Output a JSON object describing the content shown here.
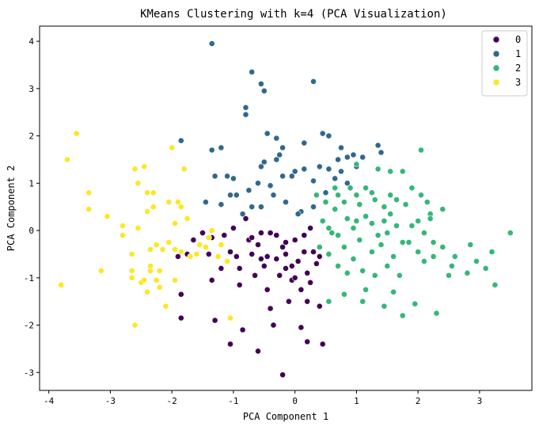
{
  "chart_data": {
    "type": "scatter",
    "title": "KMeans Clustering with k=4 (PCA Visualization)",
    "xlabel": "PCA Component 1",
    "ylabel": "PCA Component 2",
    "xlim": [
      -4.15,
      3.85
    ],
    "ylim": [
      -3.38,
      4.32
    ],
    "xticks": [
      -4,
      -3,
      -2,
      -1,
      0,
      1,
      2,
      3
    ],
    "yticks": [
      -3,
      -2,
      -1,
      0,
      1,
      2,
      3,
      4
    ],
    "grid": false,
    "legend_position": "top-right",
    "series": [
      {
        "name": "0",
        "color": "#440154",
        "points": [
          [
            -1.75,
            -0.5
          ],
          [
            -1.9,
            -0.55
          ],
          [
            -1.85,
            -1.35
          ],
          [
            -1.85,
            -1.85
          ],
          [
            -1.65,
            -0.2
          ],
          [
            -1.5,
            -0.05
          ],
          [
            -1.35,
            -0.15
          ],
          [
            -1.4,
            -0.5
          ],
          [
            -1.35,
            -1.05
          ],
          [
            -1.3,
            -1.9
          ],
          [
            -1.2,
            -0.8
          ],
          [
            -1.15,
            -0.1
          ],
          [
            -1.05,
            -0.45
          ],
          [
            -1.0,
            0.05
          ],
          [
            -0.95,
            -0.55
          ],
          [
            -0.9,
            -0.8
          ],
          [
            -0.9,
            -1.15
          ],
          [
            -0.85,
            -2.1
          ],
          [
            -1.05,
            -2.4
          ],
          [
            -0.8,
            0.25
          ],
          [
            -0.75,
            -0.2
          ],
          [
            -0.7,
            -0.5
          ],
          [
            -0.65,
            -0.95
          ],
          [
            -0.6,
            -0.3
          ],
          [
            -0.55,
            -0.05
          ],
          [
            -0.5,
            -0.75
          ],
          [
            -0.45,
            -0.55
          ],
          [
            -0.45,
            -1.25
          ],
          [
            -0.4,
            -1.65
          ],
          [
            -0.35,
            -2.0
          ],
          [
            -0.3,
            -0.1
          ],
          [
            -0.3,
            -0.6
          ],
          [
            -0.25,
            -0.95
          ],
          [
            -0.2,
            -0.35
          ],
          [
            -0.15,
            -0.5
          ],
          [
            -0.15,
            -0.25
          ],
          [
            -0.1,
            -1.5
          ],
          [
            -0.05,
            -0.75
          ],
          [
            -0.05,
            -1.05
          ],
          [
            0.0,
            -0.2
          ],
          [
            0.05,
            -0.65
          ],
          [
            0.1,
            -1.25
          ],
          [
            0.1,
            -2.05
          ],
          [
            0.15,
            -0.45
          ],
          [
            0.2,
            -0.9
          ],
          [
            0.2,
            -2.35
          ],
          [
            0.25,
            0.05
          ],
          [
            0.25,
            -1.1
          ],
          [
            0.3,
            -0.45
          ],
          [
            0.35,
            -0.7
          ],
          [
            0.4,
            -1.6
          ],
          [
            0.45,
            -2.4
          ],
          [
            -0.6,
            -2.55
          ],
          [
            -0.2,
            -3.05
          ],
          [
            -0.4,
            -0.05
          ],
          [
            -0.55,
            -0.6
          ],
          [
            0.0,
            -1.0
          ],
          [
            -0.15,
            -0.8
          ],
          [
            0.4,
            -0.55
          ],
          [
            0.15,
            -0.1
          ],
          [
            0.2,
            -1.5
          ],
          [
            -0.7,
            -0.15
          ]
        ]
      },
      {
        "name": "1",
        "color": "#31688e",
        "points": [
          [
            -1.35,
            3.95
          ],
          [
            -0.7,
            3.35
          ],
          [
            -0.55,
            3.1
          ],
          [
            -0.5,
            2.95
          ],
          [
            0.3,
            3.15
          ],
          [
            -0.8,
            2.6
          ],
          [
            -0.8,
            2.45
          ],
          [
            -1.85,
            1.9
          ],
          [
            -1.35,
            1.7
          ],
          [
            -1.2,
            1.75
          ],
          [
            -0.45,
            2.05
          ],
          [
            -0.3,
            1.95
          ],
          [
            -0.2,
            1.75
          ],
          [
            0.15,
            1.85
          ],
          [
            0.45,
            2.05
          ],
          [
            0.55,
            2.0
          ],
          [
            0.75,
            1.75
          ],
          [
            1.35,
            1.8
          ],
          [
            1.4,
            1.65
          ],
          [
            1.1,
            1.55
          ],
          [
            -1.3,
            1.15
          ],
          [
            -1.1,
            1.15
          ],
          [
            -1.05,
            0.75
          ],
          [
            -1.2,
            0.55
          ],
          [
            -1.45,
            0.6
          ],
          [
            -1.0,
            1.1
          ],
          [
            -0.95,
            0.75
          ],
          [
            -0.75,
            0.85
          ],
          [
            -0.7,
            0.5
          ],
          [
            -0.6,
            1.0
          ],
          [
            -0.55,
            1.35
          ],
          [
            -0.5,
            1.45
          ],
          [
            -0.4,
            0.95
          ],
          [
            -0.3,
            1.5
          ],
          [
            -0.25,
            1.6
          ],
          [
            -0.2,
            1.15
          ],
          [
            -0.05,
            1.15
          ],
          [
            0.15,
            1.3
          ],
          [
            0.3,
            1.05
          ],
          [
            0.4,
            1.35
          ],
          [
            0.55,
            1.3
          ],
          [
            0.65,
            1.1
          ],
          [
            0.7,
            1.5
          ],
          [
            0.75,
            1.25
          ],
          [
            0.85,
            1.55
          ],
          [
            0.95,
            1.6
          ],
          [
            1.0,
            1.35
          ],
          [
            0.85,
            1.0
          ],
          [
            0.5,
            0.8
          ],
          [
            0.3,
            0.5
          ],
          [
            0.1,
            0.4
          ],
          [
            0.05,
            0.35
          ],
          [
            -0.15,
            0.6
          ],
          [
            -0.35,
            0.75
          ],
          [
            -0.85,
            0.35
          ],
          [
            -0.55,
            0.5
          ],
          [
            0.0,
            1.25
          ]
        ]
      },
      {
        "name": "2",
        "color": "#35b779",
        "points": [
          [
            1.0,
            1.4
          ],
          [
            1.35,
            1.3
          ],
          [
            1.55,
            1.25
          ],
          [
            1.75,
            1.25
          ],
          [
            2.05,
            1.7
          ],
          [
            0.35,
            0.75
          ],
          [
            0.5,
            0.6
          ],
          [
            0.65,
            0.45
          ],
          [
            0.7,
            0.75
          ],
          [
            0.8,
            0.6
          ],
          [
            0.9,
            0.9
          ],
          [
            1.0,
            0.75
          ],
          [
            1.05,
            0.55
          ],
          [
            1.15,
            0.9
          ],
          [
            1.25,
            0.8
          ],
          [
            1.3,
            0.65
          ],
          [
            1.45,
            0.5
          ],
          [
            1.55,
            0.75
          ],
          [
            1.65,
            0.65
          ],
          [
            1.8,
            0.55
          ],
          [
            1.9,
            0.9
          ],
          [
            2.05,
            0.75
          ],
          [
            2.15,
            0.6
          ],
          [
            2.2,
            0.35
          ],
          [
            2.4,
            0.45
          ],
          [
            0.45,
            0.2
          ],
          [
            0.55,
            0.05
          ],
          [
            0.7,
            -0.1
          ],
          [
            0.85,
            0.25
          ],
          [
            0.95,
            0.05
          ],
          [
            1.05,
            -0.2
          ],
          [
            1.15,
            0.3
          ],
          [
            1.25,
            0.15
          ],
          [
            1.35,
            -0.1
          ],
          [
            1.45,
            0.2
          ],
          [
            1.55,
            0.35
          ],
          [
            1.65,
            0.1
          ],
          [
            1.75,
            -0.25
          ],
          [
            1.9,
            0.1
          ],
          [
            2.0,
            0.2
          ],
          [
            2.1,
            -0.05
          ],
          [
            2.2,
            0.25
          ],
          [
            0.4,
            -0.35
          ],
          [
            0.55,
            -0.5
          ],
          [
            0.7,
            -0.75
          ],
          [
            0.8,
            -0.35
          ],
          [
            0.95,
            -0.6
          ],
          [
            1.1,
            -0.85
          ],
          [
            1.25,
            -0.45
          ],
          [
            1.4,
            -0.3
          ],
          [
            1.5,
            -0.75
          ],
          [
            1.6,
            -0.55
          ],
          [
            1.7,
            -0.95
          ],
          [
            1.85,
            -0.25
          ],
          [
            2.0,
            -0.45
          ],
          [
            2.1,
            -0.65
          ],
          [
            2.25,
            -0.55
          ],
          [
            2.4,
            -0.35
          ],
          [
            2.55,
            -0.75
          ],
          [
            2.6,
            -0.55
          ],
          [
            2.85,
            -0.3
          ],
          [
            2.95,
            -0.65
          ],
          [
            3.1,
            -0.8
          ],
          [
            3.2,
            -0.45
          ],
          [
            3.25,
            -1.15
          ],
          [
            3.5,
            -0.05
          ],
          [
            2.8,
            -0.9
          ],
          [
            2.5,
            -0.95
          ],
          [
            0.55,
            -1.5
          ],
          [
            0.8,
            -1.35
          ],
          [
            1.1,
            -1.5
          ],
          [
            1.45,
            -1.6
          ],
          [
            1.6,
            -1.3
          ],
          [
            1.75,
            -1.8
          ],
          [
            1.95,
            -1.55
          ],
          [
            2.3,
            -1.75
          ],
          [
            1.15,
            -1.25
          ],
          [
            0.6,
            -0.05
          ],
          [
            1.0,
            0.2
          ],
          [
            1.5,
            -0.05
          ],
          [
            0.85,
            -0.9
          ],
          [
            1.3,
            -0.95
          ],
          [
            2.25,
            -0.25
          ],
          [
            0.65,
            0.9
          ]
        ]
      },
      {
        "name": "3",
        "color": "#fde725",
        "points": [
          [
            -3.55,
            2.05
          ],
          [
            -3.7,
            1.5
          ],
          [
            -3.35,
            0.8
          ],
          [
            -3.35,
            0.45
          ],
          [
            -3.05,
            0.3
          ],
          [
            -3.15,
            -0.85
          ],
          [
            -3.8,
            -1.15
          ],
          [
            -2.8,
            0.1
          ],
          [
            -2.8,
            -0.1
          ],
          [
            -2.65,
            -0.5
          ],
          [
            -2.65,
            -0.85
          ],
          [
            -2.65,
            -1.0
          ],
          [
            -2.6,
            1.3
          ],
          [
            -2.45,
            1.35
          ],
          [
            -2.55,
            1.0
          ],
          [
            -2.4,
            0.8
          ],
          [
            -2.4,
            0.4
          ],
          [
            -2.3,
            0.5
          ],
          [
            -2.55,
            0.05
          ],
          [
            -2.35,
            -0.4
          ],
          [
            -2.35,
            -0.85
          ],
          [
            -2.25,
            -0.3
          ],
          [
            -2.2,
            -0.85
          ],
          [
            -2.2,
            -1.2
          ],
          [
            -2.15,
            -0.4
          ],
          [
            -2.05,
            0.6
          ],
          [
            -1.95,
            0.15
          ],
          [
            -1.95,
            -0.4
          ],
          [
            -1.95,
            -1.05
          ],
          [
            -1.85,
            0.5
          ],
          [
            -1.8,
            1.3
          ],
          [
            -2.0,
            1.75
          ],
          [
            -1.75,
            0.25
          ],
          [
            -1.7,
            -0.55
          ],
          [
            -1.55,
            -0.3
          ],
          [
            -1.45,
            -0.35
          ],
          [
            -1.4,
            -0.15
          ],
          [
            -1.35,
            0.0
          ],
          [
            -1.25,
            -0.55
          ],
          [
            -1.1,
            -0.65
          ],
          [
            -1.05,
            -1.85
          ],
          [
            -2.1,
            -1.6
          ],
          [
            -2.6,
            -2.0
          ],
          [
            -2.5,
            -1.1
          ],
          [
            -2.4,
            -1.3
          ],
          [
            -2.25,
            -1.05
          ],
          [
            -1.9,
            0.6
          ],
          [
            -2.3,
            0.8
          ],
          [
            -2.35,
            -0.75
          ],
          [
            -2.05,
            -0.25
          ],
          [
            -1.6,
            -0.5
          ],
          [
            -2.45,
            -1.05
          ],
          [
            -1.2,
            -0.3
          ],
          [
            -1.85,
            -0.45
          ]
        ]
      }
    ],
    "legend": {
      "entries": [
        {
          "label": "0",
          "color": "#440154"
        },
        {
          "label": "1",
          "color": "#31688e"
        },
        {
          "label": "2",
          "color": "#35b779"
        },
        {
          "label": "3",
          "color": "#fde725"
        }
      ]
    }
  }
}
